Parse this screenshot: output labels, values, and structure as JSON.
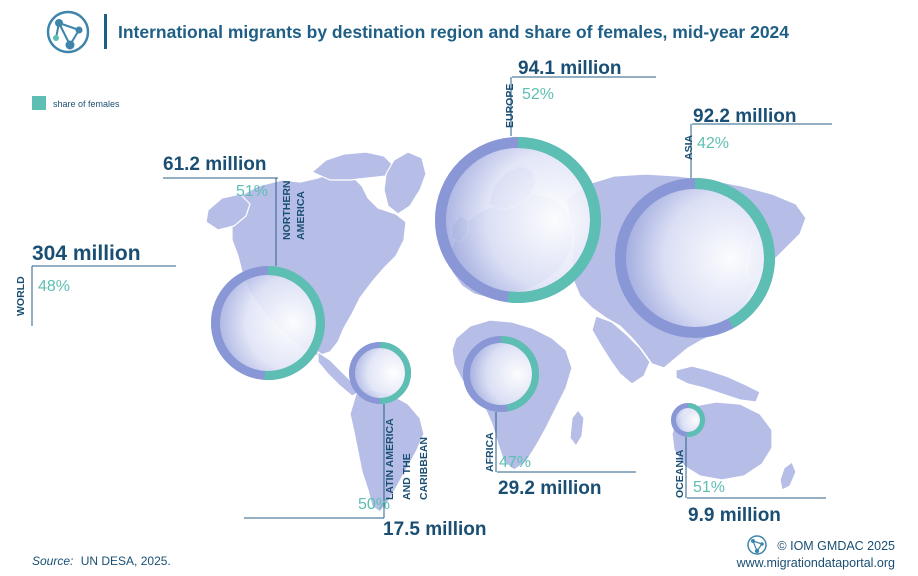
{
  "header": {
    "title": "International migrants by destination region and share of females, mid-year 2024"
  },
  "legend": {
    "label": "share of females"
  },
  "colors": {
    "title": "#1f5f86",
    "value_text": "#1a4f73",
    "female_share": "#5dbfb3",
    "region_circle": "#8a97d6",
    "map_land": "#b6bde6",
    "leader_line": "#2a5f86"
  },
  "footer": {
    "source_label": "Source:",
    "source_text": "UN DESA, 2025.",
    "copyright": "© IOM GMDAC 2025",
    "website": "www.migrationdataportal.org"
  },
  "chart_data": {
    "type": "proportional-symbol map",
    "world": {
      "label": "WORLD",
      "value": "304 million",
      "female_share": "48%"
    },
    "regions": [
      {
        "name": "EUROPE",
        "migrants_million": 94.1,
        "value": "94.1 million",
        "female_share_pct": 52,
        "female_share": "52%"
      },
      {
        "name": "ASIA",
        "migrants_million": 92.2,
        "value": "92.2 million",
        "female_share_pct": 42,
        "female_share": "42%"
      },
      {
        "name": "NORTHERN AMERICA",
        "migrants_million": 61.2,
        "value": "61.2 million",
        "female_share_pct": 51,
        "female_share": "51%"
      },
      {
        "name": "AFRICA",
        "migrants_million": 29.2,
        "value": "29.2 million",
        "female_share_pct": 47,
        "female_share": "47%"
      },
      {
        "name": "LATIN AMERICA AND THE CARIBBEAN",
        "migrants_million": 17.5,
        "value": "17.5 million",
        "female_share_pct": 50,
        "female_share": "50%"
      },
      {
        "name": "OCEANIA",
        "migrants_million": 9.9,
        "value": "9.9 million",
        "female_share_pct": 51,
        "female_share": "51%"
      }
    ]
  }
}
